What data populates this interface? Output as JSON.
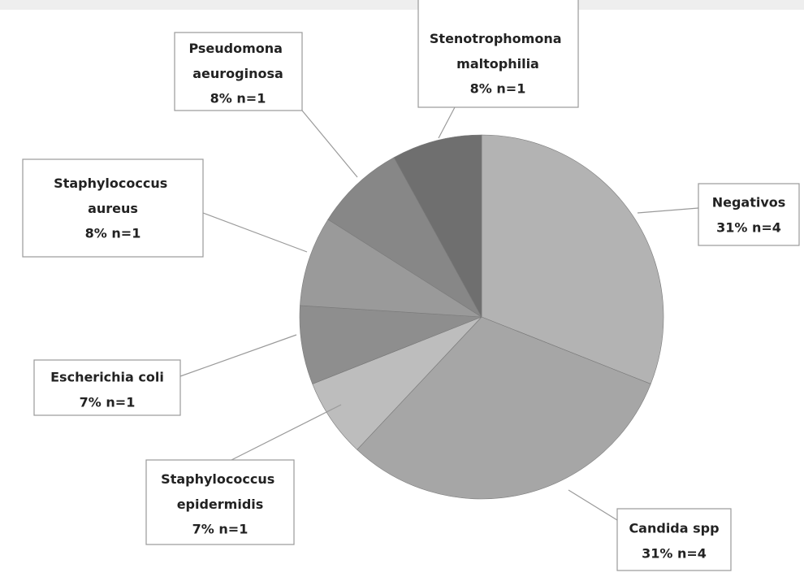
{
  "chart_data": {
    "type": "pie",
    "categories": [
      "Negativos",
      "Candida spp",
      "Staphylococcus epidermidis",
      "Escherichia coli",
      "Staphylococcus aureus",
      "Pseudomona aeuroginosa",
      "Stenotrophomona maltophilia"
    ],
    "values": [
      31,
      31,
      7,
      7,
      8,
      8,
      8
    ],
    "value_labels": [
      "31% n=4",
      "31% n=4",
      "7% n=1",
      "7% n=1",
      "8% n=1",
      "8% n=1",
      "8% n=1"
    ],
    "colors": [
      "#b3b3b3",
      "#a6a6a6",
      "#bdbdbd",
      "#8e8e8e",
      "#9a9a9a",
      "#878787",
      "#6f6f6f"
    ]
  }
}
